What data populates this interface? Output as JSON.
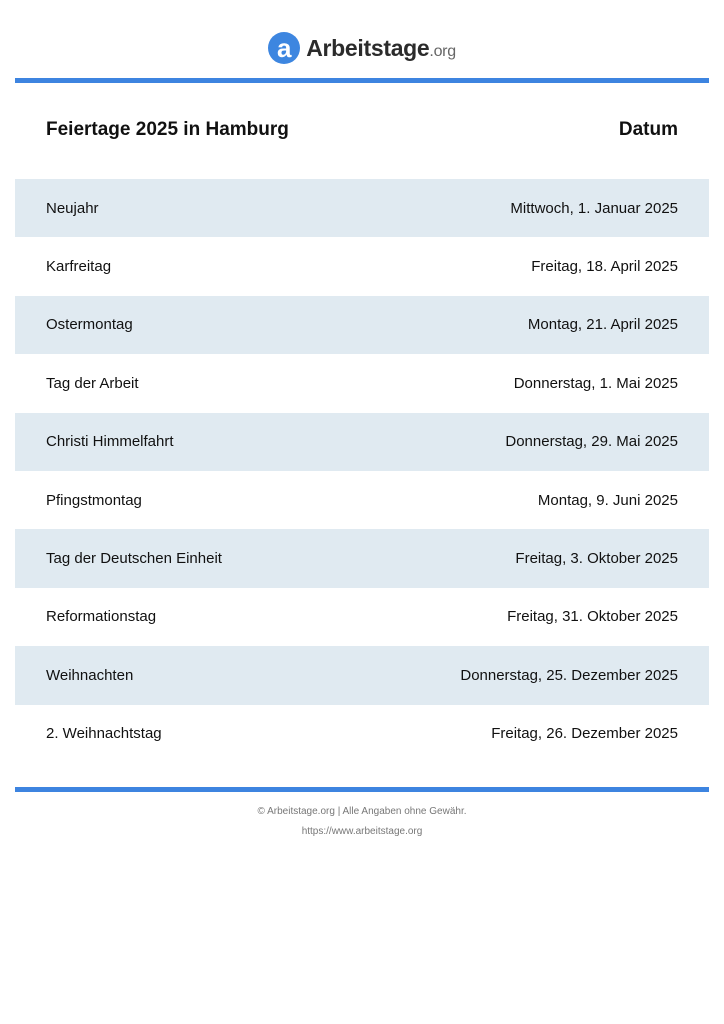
{
  "logo": {
    "icon": "a",
    "name": "Arbeitstage",
    "tld": ".org"
  },
  "header": {
    "title": "Feiertage 2025 in Hamburg",
    "date_col": "Datum"
  },
  "holidays": [
    {
      "name": "Neujahr",
      "date": "Mittwoch, 1. Januar 2025"
    },
    {
      "name": "Karfreitag",
      "date": "Freitag, 18. April 2025"
    },
    {
      "name": "Ostermontag",
      "date": "Montag, 21. April 2025"
    },
    {
      "name": "Tag der Arbeit",
      "date": "Donnerstag, 1. Mai 2025"
    },
    {
      "name": "Christi Himmelfahrt",
      "date": "Donnerstag, 29. Mai 2025"
    },
    {
      "name": "Pfingstmontag",
      "date": "Montag, 9. Juni 2025"
    },
    {
      "name": "Tag der Deutschen Einheit",
      "date": "Freitag, 3. Oktober 2025"
    },
    {
      "name": "Reformationstag",
      "date": "Freitag, 31. Oktober 2025"
    },
    {
      "name": "Weihnachten",
      "date": "Donnerstag, 25. Dezember 2025"
    },
    {
      "name": "2. Weihnachtstag",
      "date": "Freitag, 26. Dezember 2025"
    }
  ],
  "footer": {
    "copyright": "© Arbeitstage.org | Alle Angaben ohne Gewähr.",
    "url": "https://www.arbeitstage.org"
  },
  "colors": {
    "accent": "#3d84e0",
    "row_alt": "#e0eaf1"
  }
}
